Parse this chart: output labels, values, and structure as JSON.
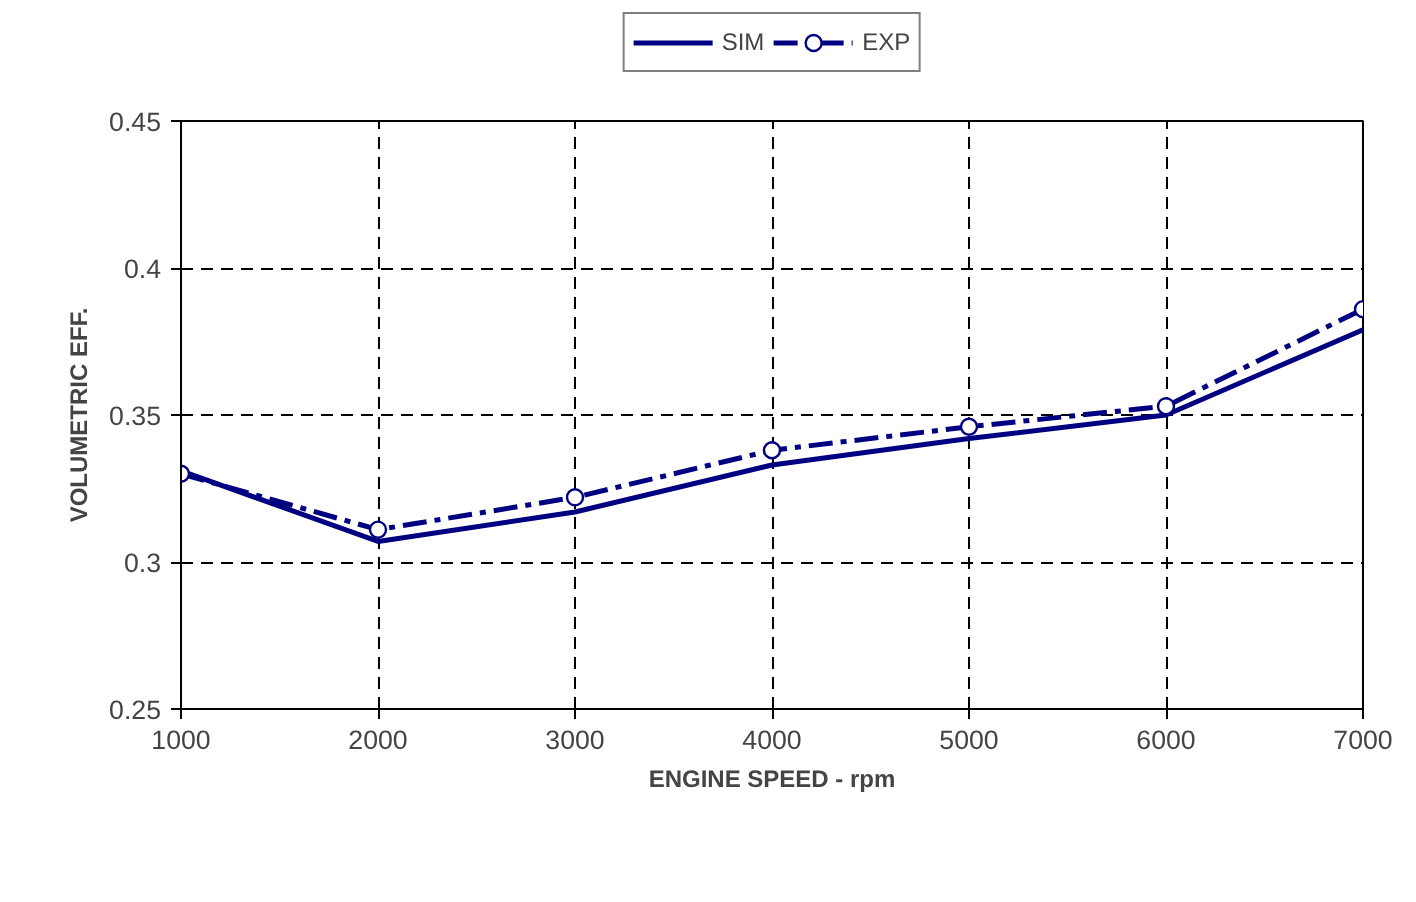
{
  "chart_data": {
    "type": "line",
    "xlabel": "ENGINE SPEED - rpm",
    "ylabel": "VOLUMETRIC EFF.",
    "x": [
      1000,
      2000,
      3000,
      4000,
      5000,
      6000,
      7000
    ],
    "series": [
      {
        "name": "SIM",
        "color": "#000080",
        "values": [
          0.331,
          0.307,
          0.317,
          0.333,
          0.342,
          0.35,
          0.379
        ],
        "marker": "none",
        "line_style": "solid"
      },
      {
        "name": "EXP",
        "color": "#000080",
        "values": [
          0.33,
          0.311,
          0.322,
          0.338,
          0.346,
          0.353,
          0.386
        ],
        "marker": "circle",
        "line_style": "dashdot"
      }
    ],
    "xlim": [
      1000,
      7000
    ],
    "xticks": [
      1000,
      2000,
      3000,
      4000,
      5000,
      6000,
      7000
    ],
    "ylim": [
      0.25,
      0.45
    ],
    "yticks": [
      0.25,
      0.3,
      0.35,
      0.4,
      0.45
    ],
    "grid": true,
    "legend": "top"
  }
}
